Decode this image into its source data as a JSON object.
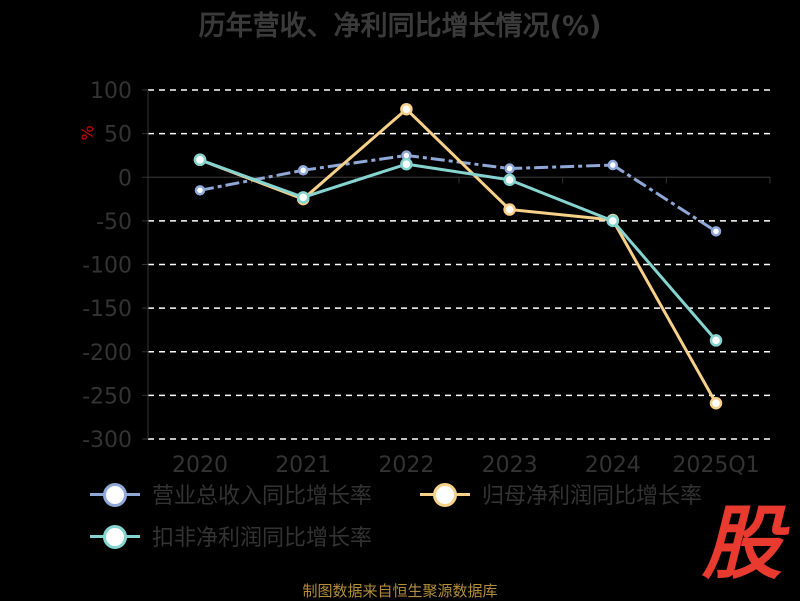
{
  "title": "历年营收、净利同比增长情况(%)",
  "footer": {
    "source": "制图数据来自恒生聚源数据库",
    "logo_text": "股"
  },
  "chart_data": {
    "type": "line",
    "title": "历年营收、净利同比增长情况(%)",
    "xlabel": "",
    "ylabel": "%",
    "categories": [
      "2020",
      "2021",
      "2022",
      "2023",
      "2024",
      "2025Q1"
    ],
    "ylim": [
      -300,
      100
    ],
    "yticks": [
      100,
      50,
      0,
      -50,
      -100,
      -150,
      -200,
      -250,
      -300
    ],
    "grid": true,
    "legend_position": "bottom",
    "series": [
      {
        "name": "营业总收入同比增长率",
        "color": "#8fa8d8",
        "dashed": true,
        "values": [
          -15,
          8,
          25,
          10,
          14,
          -62
        ]
      },
      {
        "name": "归母净利润同比增长率",
        "color": "#f7d08a",
        "dashed": false,
        "values": [
          20,
          -25,
          78,
          -37,
          -49,
          -259
        ]
      },
      {
        "name": "扣非净利润同比增长率",
        "color": "#86d4d0",
        "dashed": false,
        "values": [
          20,
          -23,
          15,
          -3,
          -50,
          -187
        ]
      }
    ]
  }
}
